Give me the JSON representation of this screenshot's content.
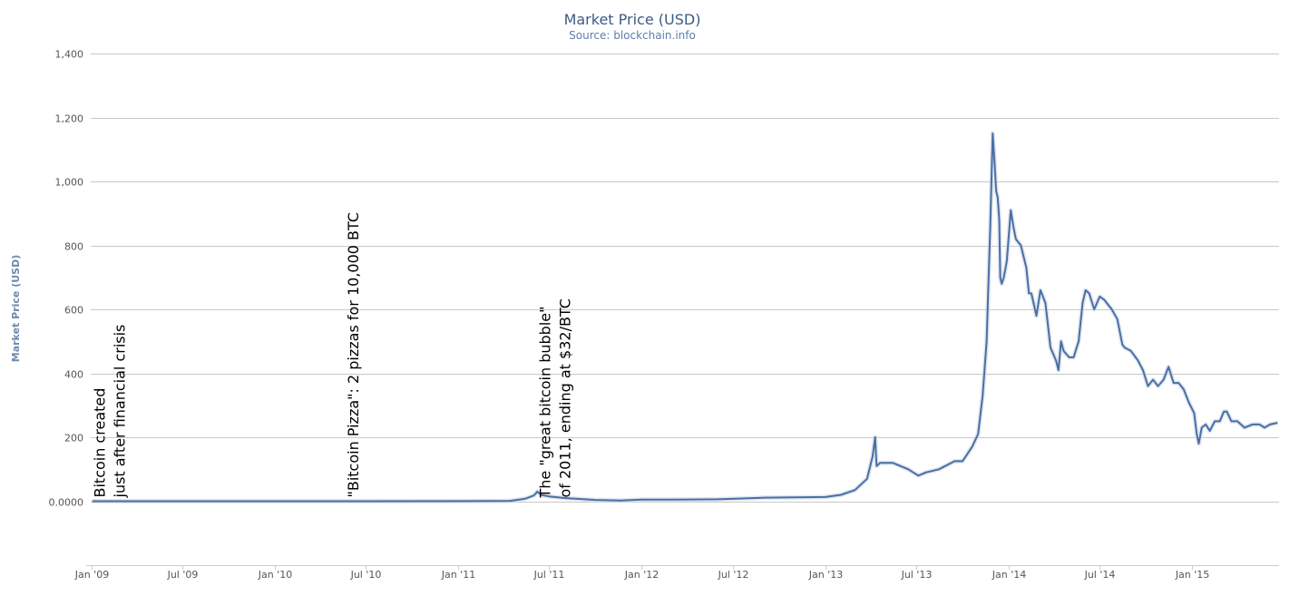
{
  "chart_data": {
    "type": "line",
    "title": "Market Price (USD)",
    "subtitle": "Source: blockchain.info",
    "xlabel": "",
    "ylabel": "Market Price (USD)",
    "xlim": [
      "2008-12-31",
      "2015-06-23"
    ],
    "ylim": [
      -200,
      1400
    ],
    "y_ticks": [
      0,
      200,
      400,
      600,
      800,
      1000,
      1200,
      1400
    ],
    "y_tick_labels": [
      "0.0000",
      "200",
      "400",
      "600",
      "800",
      "1,000",
      "1,200",
      "1,400"
    ],
    "x_ticks": [
      {
        "date": "2009-01-01",
        "label": "Jan '09"
      },
      {
        "date": "2009-07-01",
        "label": "Jul '09"
      },
      {
        "date": "2010-01-01",
        "label": "Jan '10"
      },
      {
        "date": "2010-07-01",
        "label": "Jul '10"
      },
      {
        "date": "2011-01-01",
        "label": "Jan '11"
      },
      {
        "date": "2011-07-01",
        "label": "Jul '11"
      },
      {
        "date": "2012-01-01",
        "label": "Jan '12"
      },
      {
        "date": "2012-07-01",
        "label": "Jul '12"
      },
      {
        "date": "2013-01-01",
        "label": "Jan '13"
      },
      {
        "date": "2013-07-01",
        "label": "Jul '13"
      },
      {
        "date": "2014-01-01",
        "label": "Jan '14"
      },
      {
        "date": "2014-07-01",
        "label": "Jul '14"
      },
      {
        "date": "2015-01-01",
        "label": "Jan '15"
      }
    ],
    "grid": true,
    "legend": "none",
    "color": "#4a6fa5",
    "series": [
      {
        "x": [
          "2009-01-03",
          "2009-07-01",
          "2010-01-01",
          "2010-07-01",
          "2011-01-01",
          "2011-03-01",
          "2011-04-15",
          "2011-05-15",
          "2011-06-01",
          "2011-06-08",
          "2011-06-15",
          "2011-07-01",
          "2011-08-01",
          "2011-10-01",
          "2011-11-20",
          "2012-01-01",
          "2012-03-01",
          "2012-06-01",
          "2012-08-15",
          "2012-09-01",
          "2012-11-01",
          "2013-01-01",
          "2013-02-01",
          "2013-03-01",
          "2013-03-25",
          "2013-04-05",
          "2013-04-10",
          "2013-04-13",
          "2013-04-20",
          "2013-05-15",
          "2013-06-15",
          "2013-07-05",
          "2013-07-20",
          "2013-08-15",
          "2013-09-15",
          "2013-10-01",
          "2013-10-20",
          "2013-11-01",
          "2013-11-10",
          "2013-11-18",
          "2013-11-22",
          "2013-11-25",
          "2013-11-30",
          "2013-12-04",
          "2013-12-07",
          "2013-12-10",
          "2013-12-13",
          "2013-12-15",
          "2013-12-18",
          "2013-12-22",
          "2013-12-28",
          "2014-01-05",
          "2014-01-10",
          "2014-01-15",
          "2014-01-25",
          "2014-02-05",
          "2014-02-10",
          "2014-02-15",
          "2014-02-25",
          "2014-03-05",
          "2014-03-15",
          "2014-03-25",
          "2014-04-05",
          "2014-04-10",
          "2014-04-15",
          "2014-04-20",
          "2014-05-01",
          "2014-05-10",
          "2014-05-20",
          "2014-05-28",
          "2014-06-03",
          "2014-06-10",
          "2014-06-20",
          "2014-07-01",
          "2014-07-10",
          "2014-07-25",
          "2014-08-05",
          "2014-08-15",
          "2014-08-20",
          "2014-09-01",
          "2014-09-15",
          "2014-09-25",
          "2014-10-05",
          "2014-10-15",
          "2014-10-25",
          "2014-11-05",
          "2014-11-15",
          "2014-11-25",
          "2014-12-05",
          "2014-12-15",
          "2014-12-25",
          "2015-01-05",
          "2015-01-10",
          "2015-01-14",
          "2015-01-20",
          "2015-01-28",
          "2015-02-05",
          "2015-02-15",
          "2015-02-25",
          "2015-03-05",
          "2015-03-11",
          "2015-03-20",
          "2015-04-01",
          "2015-04-15",
          "2015-05-01",
          "2015-05-15",
          "2015-05-25",
          "2015-06-05",
          "2015-06-20"
        ],
        "y": [
          0,
          0,
          0,
          0.07,
          0.3,
          0.9,
          1,
          8,
          18,
          30,
          20,
          15,
          10,
          4,
          2,
          5,
          5,
          6,
          10,
          11,
          12,
          13,
          20,
          35,
          70,
          140,
          200,
          110,
          120,
          120,
          100,
          80,
          90,
          100,
          125,
          125,
          170,
          210,
          330,
          500,
          700,
          850,
          1150,
          1050,
          970,
          950,
          880,
          700,
          680,
          700,
          750,
          910,
          860,
          820,
          800,
          730,
          650,
          650,
          580,
          660,
          620,
          480,
          440,
          410,
          500,
          470,
          450,
          450,
          500,
          620,
          660,
          650,
          600,
          640,
          630,
          600,
          570,
          490,
          480,
          470,
          440,
          410,
          360,
          380,
          360,
          380,
          420,
          370,
          370,
          350,
          310,
          275,
          210,
          180,
          230,
          240,
          220,
          250,
          250,
          280,
          280,
          250,
          250,
          230,
          240,
          240,
          230,
          240,
          245
        ]
      }
    ]
  },
  "annotations": [
    {
      "date": "2009-01-03",
      "lines": [
        "Bitcoin created",
        "just after financial crisis"
      ]
    },
    {
      "date": "2010-05-22",
      "lines": [
        "\"Bitcoin Pizza\": 2 pizzas for 10,000 BTC"
      ]
    },
    {
      "date": "2011-06-08",
      "lines": [
        "The \"great bitcoin bubble\"",
        "of 2011, ending at $32/BTC"
      ]
    }
  ]
}
